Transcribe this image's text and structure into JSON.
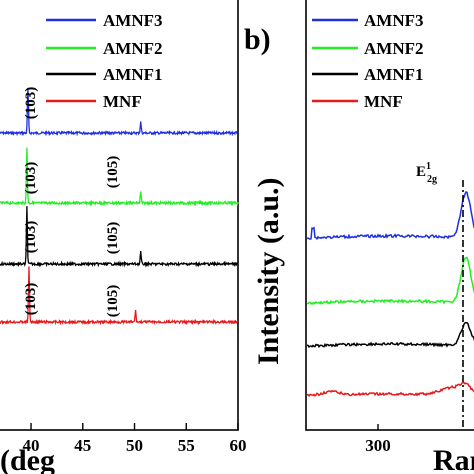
{
  "chart_data": [
    {
      "panel": "a",
      "type": "line",
      "xlabel": "(deg",
      "x_ticks": [
        40,
        45,
        50,
        55,
        60
      ],
      "xlim": [
        37.0,
        60.0
      ],
      "series": [
        {
          "name": "AMNF3",
          "color": "#1f2fe0",
          "peaks": [
            {
              "x": 39.7,
              "height": 45
            },
            {
              "x": 50.6,
              "height": 11
            }
          ]
        },
        {
          "name": "AMNF2",
          "color": "#22ee22",
          "peaks": [
            {
              "x": 39.6,
              "height": 56
            },
            {
              "x": 50.6,
              "height": 11
            }
          ]
        },
        {
          "name": "AMNF1",
          "color": "#000000",
          "peaks": [
            {
              "x": 39.6,
              "height": 57
            },
            {
              "x": 50.6,
              "height": 12
            }
          ]
        },
        {
          "name": "MNF",
          "color": "#e41a1c",
          "peaks": [
            {
              "x": 39.8,
              "height": 55
            },
            {
              "x": 50.1,
              "height": 11
            }
          ]
        }
      ],
      "annotations": [
        {
          "text": "(103)",
          "series": "AMNF3"
        },
        {
          "text": "(103)",
          "series": "AMNF2"
        },
        {
          "text": "(105)",
          "series": "AMNF2"
        },
        {
          "text": "(103)",
          "series": "AMNF1"
        },
        {
          "text": "(105)",
          "series": "AMNF1"
        },
        {
          "text": "(103)",
          "series": "MNF"
        },
        {
          "text": "(105)",
          "series": "MNF"
        }
      ],
      "legend_location": "top-right"
    },
    {
      "panel": "b",
      "panel_label": "b)",
      "type": "line",
      "ylabel": "Intensity (a.u.)",
      "xlabel": "Ram",
      "x_ticks": [
        300
      ],
      "peak_label": {
        "main": "E",
        "sup": "1",
        "sub": "2g"
      },
      "series": [
        {
          "name": "AMNF3",
          "color": "#1f2fe0"
        },
        {
          "name": "AMNF2",
          "color": "#22ee22"
        },
        {
          "name": "AMNF1",
          "color": "#000000"
        },
        {
          "name": "MNF",
          "color": "#e41a1c"
        }
      ],
      "legend_location": "top"
    }
  ]
}
